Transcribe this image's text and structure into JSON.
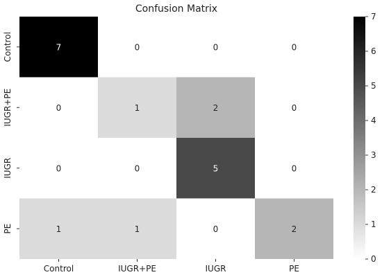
{
  "chart_data": {
    "type": "heatmap",
    "title": "Confusion Matrix",
    "xlabel": "",
    "ylabel": "",
    "x_categories": [
      "Control",
      "IUGR+PE",
      "IUGR",
      "PE"
    ],
    "y_categories": [
      "Control",
      "IUGR+PE",
      "IUGR",
      "PE"
    ],
    "matrix": [
      [
        7,
        0,
        0,
        0
      ],
      [
        0,
        1,
        2,
        0
      ],
      [
        0,
        0,
        5,
        0
      ],
      [
        1,
        1,
        0,
        2
      ]
    ],
    "colorbar": {
      "min": 0,
      "max": 7,
      "ticks": [
        0,
        1,
        2,
        3,
        4,
        5,
        6,
        7
      ]
    },
    "colormap": "Greys",
    "grid": false
  }
}
